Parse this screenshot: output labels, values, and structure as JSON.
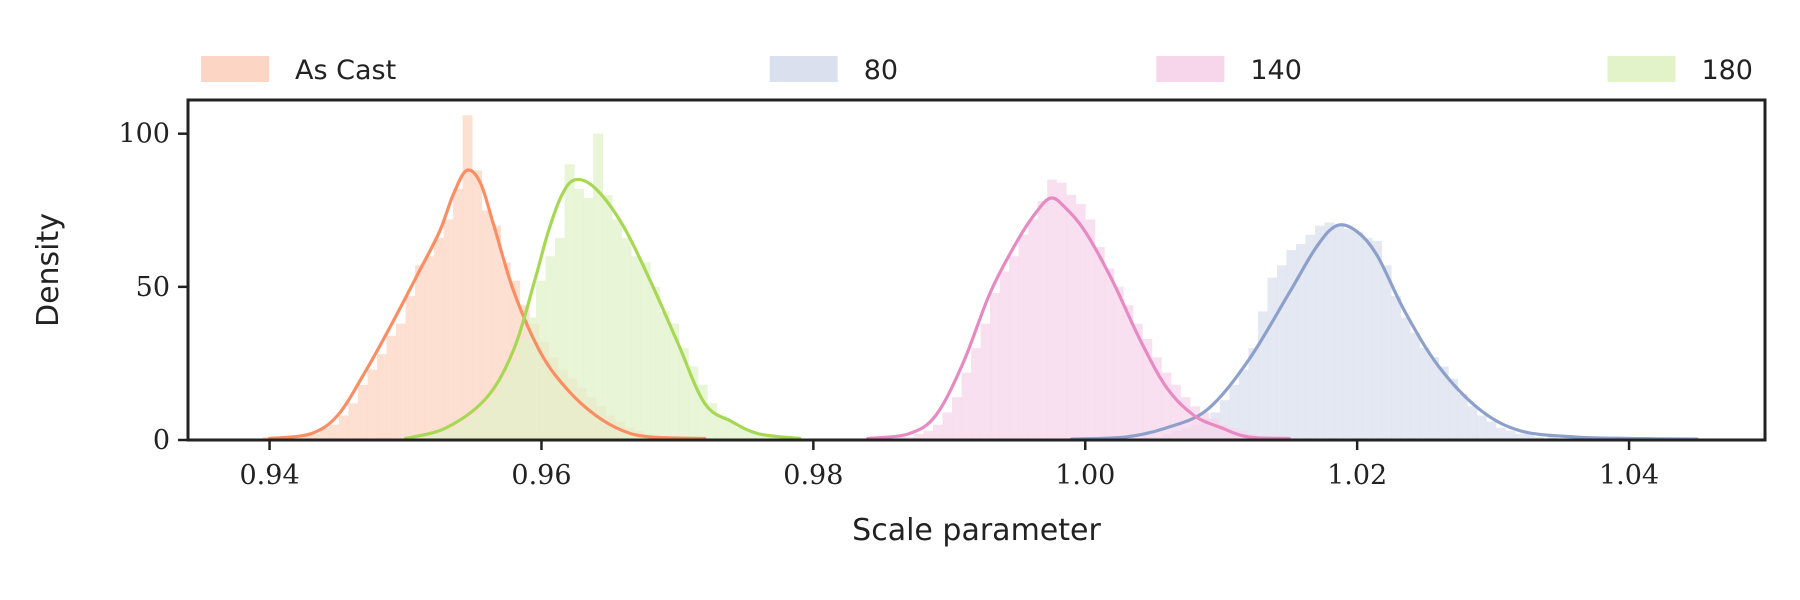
{
  "chart_data": {
    "type": "histogram+kde",
    "xlabel": "Scale parameter",
    "ylabel": "Density",
    "xlim": [
      0.934,
      1.05
    ],
    "ylim": [
      0,
      111
    ],
    "xticks": [
      0.94,
      0.96,
      0.98,
      1.0,
      1.02,
      1.04
    ],
    "xtick_labels": [
      "0.94",
      "0.96",
      "0.98",
      "1.00",
      "1.02",
      "1.04"
    ],
    "yticks": [
      0,
      50,
      100
    ],
    "ytick_labels": [
      "0",
      "50",
      "100"
    ],
    "grid": false,
    "legend_position": "top, above plot, single row",
    "bin_width": 0.0007,
    "series": [
      {
        "name": "As Cast",
        "line_color": "#fc8d62",
        "fill_color": "#fdd5c4",
        "kde": [
          [
            0.94,
            0.5
          ],
          [
            0.943,
            2
          ],
          [
            0.945,
            8
          ],
          [
            0.947,
            22
          ],
          [
            0.949,
            38
          ],
          [
            0.951,
            55
          ],
          [
            0.9525,
            68
          ],
          [
            0.9535,
            80
          ],
          [
            0.9545,
            88
          ],
          [
            0.9555,
            84
          ],
          [
            0.9565,
            70
          ],
          [
            0.958,
            48
          ],
          [
            0.96,
            28
          ],
          [
            0.962,
            16
          ],
          [
            0.964,
            8
          ],
          [
            0.966,
            3
          ],
          [
            0.968,
            1
          ],
          [
            0.972,
            0.5
          ]
        ],
        "hist": [
          [
            0.9395,
            1
          ],
          [
            0.9402,
            1
          ],
          [
            0.9409,
            1
          ],
          [
            0.9416,
            1
          ],
          [
            0.9423,
            2
          ],
          [
            0.943,
            2
          ],
          [
            0.9437,
            4
          ],
          [
            0.9444,
            5
          ],
          [
            0.9451,
            8
          ],
          [
            0.9458,
            12
          ],
          [
            0.9465,
            18
          ],
          [
            0.9472,
            23
          ],
          [
            0.9479,
            28
          ],
          [
            0.9486,
            34
          ],
          [
            0.9493,
            38
          ],
          [
            0.95,
            47
          ],
          [
            0.9507,
            57
          ],
          [
            0.9514,
            60
          ],
          [
            0.9521,
            66
          ],
          [
            0.9528,
            72
          ],
          [
            0.9535,
            82
          ],
          [
            0.9542,
            106
          ],
          [
            0.9549,
            88
          ],
          [
            0.9556,
            75
          ],
          [
            0.9563,
            70
          ],
          [
            0.957,
            58
          ],
          [
            0.9577,
            52
          ],
          [
            0.9584,
            44
          ],
          [
            0.9591,
            38
          ],
          [
            0.9598,
            32
          ],
          [
            0.9605,
            27
          ],
          [
            0.9612,
            23
          ],
          [
            0.9619,
            20
          ],
          [
            0.9626,
            17
          ],
          [
            0.9633,
            14
          ],
          [
            0.964,
            11
          ],
          [
            0.9647,
            8
          ],
          [
            0.9654,
            6
          ],
          [
            0.9661,
            4
          ],
          [
            0.9668,
            3
          ],
          [
            0.9675,
            2
          ],
          [
            0.9682,
            1
          ],
          [
            0.9689,
            1
          ],
          [
            0.9696,
            1
          ],
          [
            0.9703,
            1
          ]
        ]
      },
      {
        "name": "80",
        "line_color": "#8da0cb",
        "fill_color": "#dbe0ee",
        "kde": [
          [
            0.999,
            0.3
          ],
          [
            1.003,
            1
          ],
          [
            1.006,
            4
          ],
          [
            1.009,
            10
          ],
          [
            1.012,
            26
          ],
          [
            1.015,
            48
          ],
          [
            1.017,
            63
          ],
          [
            1.0185,
            70
          ],
          [
            1.02,
            68
          ],
          [
            1.0215,
            60
          ],
          [
            1.0235,
            42
          ],
          [
            1.026,
            24
          ],
          [
            1.029,
            10
          ],
          [
            1.032,
            3
          ],
          [
            1.036,
            1
          ],
          [
            1.04,
            0.5
          ],
          [
            1.045,
            0.3
          ]
        ],
        "hist": [
          [
            1.0043,
            1
          ],
          [
            1.005,
            1
          ],
          [
            1.0057,
            2
          ],
          [
            1.0064,
            3
          ],
          [
            1.0071,
            4
          ],
          [
            1.0078,
            5
          ],
          [
            1.0085,
            7
          ],
          [
            1.0092,
            9
          ],
          [
            1.0099,
            13
          ],
          [
            1.0106,
            18
          ],
          [
            1.0113,
            23
          ],
          [
            1.012,
            30
          ],
          [
            1.0127,
            42
          ],
          [
            1.0134,
            53
          ],
          [
            1.0141,
            57
          ],
          [
            1.0148,
            62
          ],
          [
            1.0155,
            64
          ],
          [
            1.0162,
            67
          ],
          [
            1.0169,
            70
          ],
          [
            1.0176,
            71
          ],
          [
            1.0183,
            70
          ],
          [
            1.019,
            69
          ],
          [
            1.0197,
            68
          ],
          [
            1.0204,
            66
          ],
          [
            1.0211,
            65
          ],
          [
            1.0218,
            57
          ],
          [
            1.0225,
            47
          ],
          [
            1.0232,
            40
          ],
          [
            1.0239,
            35
          ],
          [
            1.0246,
            30
          ],
          [
            1.0253,
            27
          ],
          [
            1.026,
            24
          ],
          [
            1.0267,
            20
          ],
          [
            1.0274,
            15
          ],
          [
            1.0281,
            11
          ],
          [
            1.0288,
            8
          ],
          [
            1.0295,
            6
          ],
          [
            1.0302,
            4
          ],
          [
            1.0309,
            3
          ],
          [
            1.0316,
            2
          ],
          [
            1.0323,
            2
          ],
          [
            1.033,
            1
          ],
          [
            1.034,
            1
          ],
          [
            1.036,
            1
          ],
          [
            1.039,
            0.5
          ],
          [
            1.044,
            0.5
          ]
        ]
      },
      {
        "name": "140",
        "line_color": "#e78ac3",
        "fill_color": "#f7d6eb",
        "kde": [
          [
            0.984,
            0.5
          ],
          [
            0.987,
            2
          ],
          [
            0.989,
            8
          ],
          [
            0.991,
            25
          ],
          [
            0.993,
            48
          ],
          [
            0.995,
            65
          ],
          [
            0.9965,
            75
          ],
          [
            0.9975,
            79
          ],
          [
            0.9985,
            76
          ],
          [
            1.0,
            68
          ],
          [
            1.002,
            52
          ],
          [
            1.004,
            33
          ],
          [
            1.006,
            17
          ],
          [
            1.008,
            8
          ],
          [
            1.01,
            4
          ],
          [
            1.012,
            1
          ],
          [
            1.015,
            0.5
          ]
        ],
        "hist": [
          [
            0.986,
            1
          ],
          [
            0.9867,
            1
          ],
          [
            0.9874,
            2
          ],
          [
            0.9881,
            3
          ],
          [
            0.9888,
            5
          ],
          [
            0.9895,
            9
          ],
          [
            0.9902,
            14
          ],
          [
            0.9909,
            22
          ],
          [
            0.9916,
            30
          ],
          [
            0.9923,
            38
          ],
          [
            0.993,
            48
          ],
          [
            0.9937,
            55
          ],
          [
            0.9944,
            60
          ],
          [
            0.9951,
            67
          ],
          [
            0.9958,
            72
          ],
          [
            0.9965,
            78
          ],
          [
            0.9972,
            85
          ],
          [
            0.9979,
            84
          ],
          [
            0.9986,
            80
          ],
          [
            0.9993,
            77
          ],
          [
            1.0,
            72
          ],
          [
            1.0007,
            63
          ],
          [
            1.0014,
            56
          ],
          [
            1.0021,
            50
          ],
          [
            1.0028,
            44
          ],
          [
            1.0035,
            38
          ],
          [
            1.0042,
            33
          ],
          [
            1.0049,
            27
          ],
          [
            1.0056,
            22
          ],
          [
            1.0063,
            18
          ],
          [
            1.007,
            14
          ],
          [
            1.0077,
            11
          ],
          [
            1.0084,
            9
          ],
          [
            1.0091,
            7
          ],
          [
            1.0098,
            5
          ],
          [
            1.0105,
            4
          ],
          [
            1.0112,
            3
          ],
          [
            1.0119,
            2
          ],
          [
            1.0126,
            1
          ],
          [
            1.0133,
            1
          ]
        ]
      },
      {
        "name": "180",
        "line_color": "#a6d854",
        "fill_color": "#e2f2c9",
        "kde": [
          [
            0.95,
            0.5
          ],
          [
            0.953,
            4
          ],
          [
            0.956,
            14
          ],
          [
            0.958,
            30
          ],
          [
            0.9595,
            52
          ],
          [
            0.9605,
            68
          ],
          [
            0.9615,
            80
          ],
          [
            0.9625,
            85
          ],
          [
            0.964,
            82
          ],
          [
            0.966,
            70
          ],
          [
            0.968,
            52
          ],
          [
            0.97,
            32
          ],
          [
            0.972,
            12
          ],
          [
            0.974,
            6
          ],
          [
            0.976,
            2
          ],
          [
            0.979,
            0.5
          ]
        ],
        "hist": [
          [
            0.9505,
            1
          ],
          [
            0.9512,
            1
          ],
          [
            0.9519,
            2
          ],
          [
            0.9526,
            3
          ],
          [
            0.9533,
            4
          ],
          [
            0.954,
            6
          ],
          [
            0.9547,
            8
          ],
          [
            0.9554,
            11
          ],
          [
            0.9561,
            15
          ],
          [
            0.9568,
            20
          ],
          [
            0.9575,
            26
          ],
          [
            0.9582,
            33
          ],
          [
            0.9589,
            40
          ],
          [
            0.9596,
            52
          ],
          [
            0.9603,
            60
          ],
          [
            0.961,
            66
          ],
          [
            0.9617,
            90
          ],
          [
            0.9624,
            82
          ],
          [
            0.9631,
            79
          ],
          [
            0.9638,
            100
          ],
          [
            0.9645,
            80
          ],
          [
            0.9652,
            72
          ],
          [
            0.9659,
            66
          ],
          [
            0.9666,
            60
          ],
          [
            0.9673,
            58
          ],
          [
            0.968,
            50
          ],
          [
            0.9687,
            42
          ],
          [
            0.9694,
            38
          ],
          [
            0.9701,
            30
          ],
          [
            0.9708,
            24
          ],
          [
            0.9715,
            18
          ],
          [
            0.9722,
            12
          ],
          [
            0.9729,
            8
          ],
          [
            0.9736,
            6
          ],
          [
            0.9743,
            4
          ],
          [
            0.975,
            3
          ],
          [
            0.9757,
            2
          ],
          [
            0.9764,
            1
          ],
          [
            0.9771,
            1
          ]
        ]
      }
    ]
  }
}
